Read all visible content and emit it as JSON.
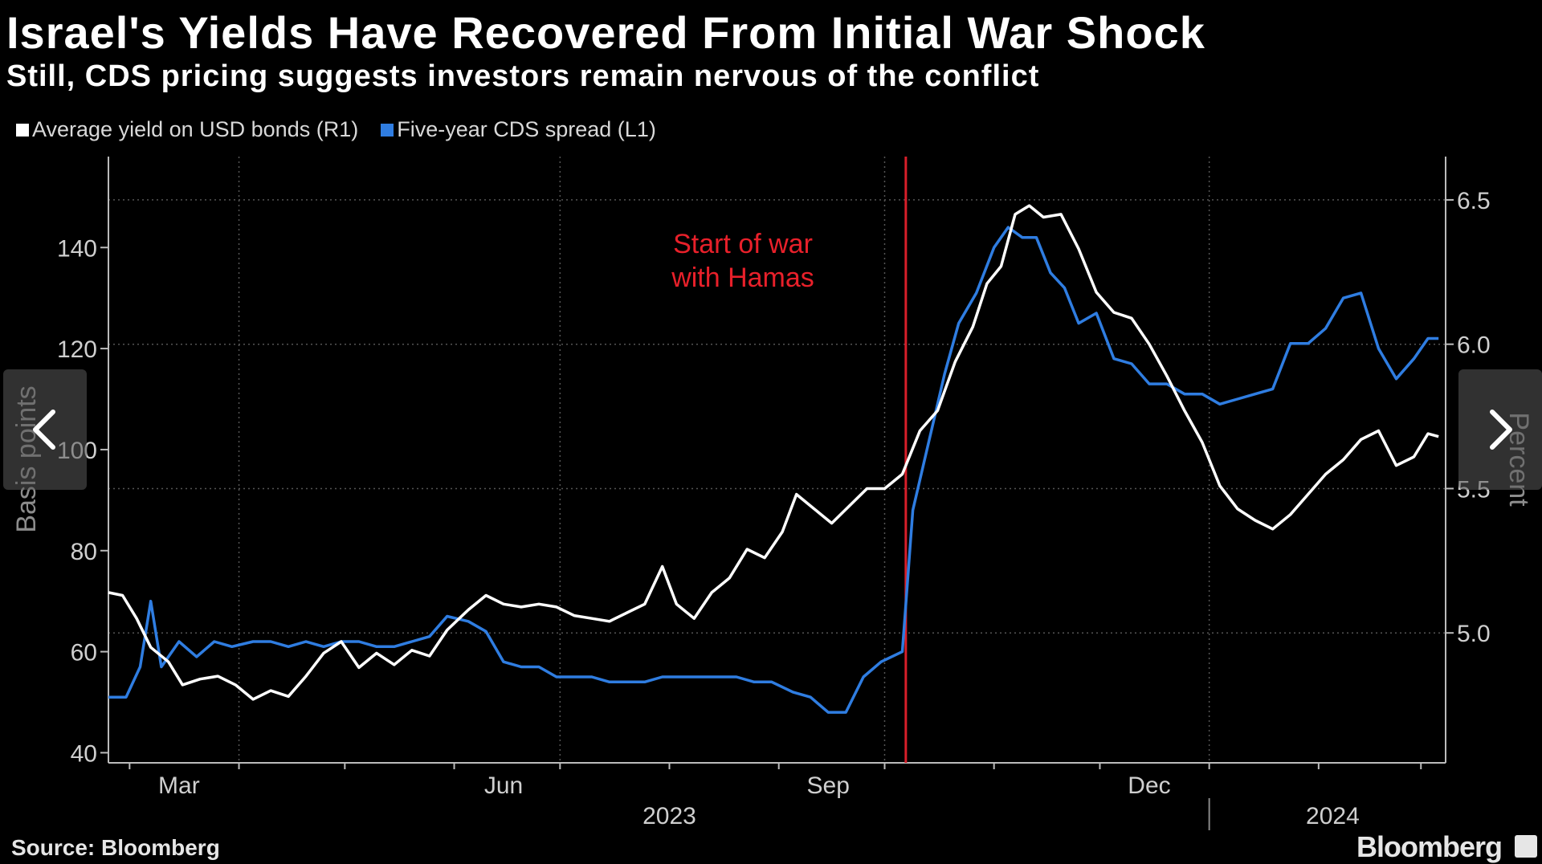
{
  "title": "Israel's Yields Have Recovered From Initial War Shock",
  "subtitle": "Still, CDS pricing suggests investors remain nervous of the conflict",
  "source": "Source: Bloomberg",
  "brand": "Bloomberg",
  "colors": {
    "yield": "#ffffff",
    "cds": "#2f7de1",
    "war_line": "#d81f2a",
    "grid": "#555555"
  },
  "icons": {
    "prev": "chevron-left-icon",
    "next": "chevron-right-icon",
    "brand": "bloomberg-logo-icon"
  },
  "chart_data": {
    "type": "line",
    "title": "Israel's Yields Have Recovered From Initial War Shock",
    "subtitle": "Still, CDS pricing suggests investors remain nervous of the conflict",
    "ylabel_left": "Basis points",
    "ylabel_right": "Percent",
    "ylim_left": [
      38,
      158
    ],
    "ylim_right": [
      4.55,
      6.65
    ],
    "yticks_left": [
      40,
      60,
      80,
      100,
      120,
      140
    ],
    "yticks_right": [
      "5.0",
      "5.5",
      "6.0",
      "6.5"
    ],
    "xlim": [
      "2023-02-23",
      "2024-03-08"
    ],
    "x_month_labels": [
      {
        "label": "Mar",
        "date": "2023-03-15"
      },
      {
        "label": "Jun",
        "date": "2023-06-15"
      },
      {
        "label": "Sep",
        "date": "2023-09-15"
      },
      {
        "label": "Dec",
        "date": "2023-12-15"
      }
    ],
    "x_year_labels": [
      {
        "label": "2023",
        "date": "2023-08-01"
      },
      {
        "label": "2024",
        "date": "2024-02-05"
      }
    ],
    "annotation": {
      "text": [
        "Start of war",
        "with Hamas"
      ],
      "date": "2023-10-07"
    },
    "legend": "top-left",
    "grid": true,
    "series": [
      {
        "name": "Average yield on USD bonds (R1)",
        "axis": "right",
        "points": [
          [
            "2023-02-23",
            5.14
          ],
          [
            "2023-02-27",
            5.13
          ],
          [
            "2023-03-03",
            5.05
          ],
          [
            "2023-03-07",
            4.95
          ],
          [
            "2023-03-12",
            4.9
          ],
          [
            "2023-03-16",
            4.82
          ],
          [
            "2023-03-21",
            4.84
          ],
          [
            "2023-03-26",
            4.85
          ],
          [
            "2023-03-31",
            4.82
          ],
          [
            "2023-04-05",
            4.77
          ],
          [
            "2023-04-10",
            4.8
          ],
          [
            "2023-04-15",
            4.78
          ],
          [
            "2023-04-20",
            4.85
          ],
          [
            "2023-04-25",
            4.93
          ],
          [
            "2023-04-30",
            4.97
          ],
          [
            "2023-05-05",
            4.88
          ],
          [
            "2023-05-10",
            4.93
          ],
          [
            "2023-05-15",
            4.89
          ],
          [
            "2023-05-20",
            4.94
          ],
          [
            "2023-05-25",
            4.92
          ],
          [
            "2023-05-30",
            5.01
          ],
          [
            "2023-06-05",
            5.08
          ],
          [
            "2023-06-10",
            5.13
          ],
          [
            "2023-06-15",
            5.1
          ],
          [
            "2023-06-20",
            5.09
          ],
          [
            "2023-06-25",
            5.1
          ],
          [
            "2023-06-30",
            5.09
          ],
          [
            "2023-07-05",
            5.06
          ],
          [
            "2023-07-10",
            5.05
          ],
          [
            "2023-07-15",
            5.04
          ],
          [
            "2023-07-20",
            5.07
          ],
          [
            "2023-07-25",
            5.1
          ],
          [
            "2023-07-30",
            5.23
          ],
          [
            "2023-08-03",
            5.1
          ],
          [
            "2023-08-08",
            5.05
          ],
          [
            "2023-08-13",
            5.14
          ],
          [
            "2023-08-18",
            5.19
          ],
          [
            "2023-08-23",
            5.29
          ],
          [
            "2023-08-28",
            5.26
          ],
          [
            "2023-09-02",
            5.35
          ],
          [
            "2023-09-06",
            5.48
          ],
          [
            "2023-09-11",
            5.43
          ],
          [
            "2023-09-16",
            5.38
          ],
          [
            "2023-09-21",
            5.44
          ],
          [
            "2023-09-26",
            5.5
          ],
          [
            "2023-10-01",
            5.5
          ],
          [
            "2023-10-06",
            5.55
          ],
          [
            "2023-10-11",
            5.7
          ],
          [
            "2023-10-16",
            5.77
          ],
          [
            "2023-10-21",
            5.94
          ],
          [
            "2023-10-26",
            6.06
          ],
          [
            "2023-10-30",
            6.21
          ],
          [
            "2023-11-03",
            6.27
          ],
          [
            "2023-11-07",
            6.45
          ],
          [
            "2023-11-11",
            6.48
          ],
          [
            "2023-11-15",
            6.44
          ],
          [
            "2023-11-20",
            6.45
          ],
          [
            "2023-11-25",
            6.33
          ],
          [
            "2023-11-30",
            6.18
          ],
          [
            "2023-12-05",
            6.11
          ],
          [
            "2023-12-10",
            6.09
          ],
          [
            "2023-12-15",
            6.0
          ],
          [
            "2023-12-20",
            5.89
          ],
          [
            "2023-12-25",
            5.77
          ],
          [
            "2023-12-30",
            5.66
          ],
          [
            "2024-01-04",
            5.51
          ],
          [
            "2024-01-09",
            5.43
          ],
          [
            "2024-01-14",
            5.39
          ],
          [
            "2024-01-19",
            5.36
          ],
          [
            "2024-01-24",
            5.41
          ],
          [
            "2024-01-29",
            5.48
          ],
          [
            "2024-02-03",
            5.55
          ],
          [
            "2024-02-08",
            5.6
          ],
          [
            "2024-02-13",
            5.67
          ],
          [
            "2024-02-18",
            5.7
          ],
          [
            "2024-02-23",
            5.58
          ],
          [
            "2024-02-28",
            5.61
          ],
          [
            "2024-03-03",
            5.69
          ],
          [
            "2024-03-06",
            5.68
          ]
        ]
      },
      {
        "name": "Five-year CDS spread (L1)",
        "axis": "left",
        "points": [
          [
            "2023-02-23",
            51
          ],
          [
            "2023-02-28",
            51
          ],
          [
            "2023-03-04",
            57
          ],
          [
            "2023-03-07",
            70
          ],
          [
            "2023-03-10",
            57
          ],
          [
            "2023-03-15",
            62
          ],
          [
            "2023-03-20",
            59
          ],
          [
            "2023-03-25",
            62
          ],
          [
            "2023-03-30",
            61
          ],
          [
            "2023-04-05",
            62
          ],
          [
            "2023-04-10",
            62
          ],
          [
            "2023-04-15",
            61
          ],
          [
            "2023-04-20",
            62
          ],
          [
            "2023-04-25",
            61
          ],
          [
            "2023-04-30",
            62
          ],
          [
            "2023-05-05",
            62
          ],
          [
            "2023-05-10",
            61
          ],
          [
            "2023-05-15",
            61
          ],
          [
            "2023-05-20",
            62
          ],
          [
            "2023-05-25",
            63
          ],
          [
            "2023-05-30",
            67
          ],
          [
            "2023-06-05",
            66
          ],
          [
            "2023-06-10",
            64
          ],
          [
            "2023-06-15",
            58
          ],
          [
            "2023-06-20",
            57
          ],
          [
            "2023-06-25",
            57
          ],
          [
            "2023-06-30",
            55
          ],
          [
            "2023-07-05",
            55
          ],
          [
            "2023-07-10",
            55
          ],
          [
            "2023-07-15",
            54
          ],
          [
            "2023-07-20",
            54
          ],
          [
            "2023-07-25",
            54
          ],
          [
            "2023-07-30",
            55
          ],
          [
            "2023-08-05",
            55
          ],
          [
            "2023-08-10",
            55
          ],
          [
            "2023-08-15",
            55
          ],
          [
            "2023-08-20",
            55
          ],
          [
            "2023-08-25",
            54
          ],
          [
            "2023-08-30",
            54
          ],
          [
            "2023-09-05",
            52
          ],
          [
            "2023-09-10",
            51
          ],
          [
            "2023-09-15",
            48
          ],
          [
            "2023-09-20",
            48
          ],
          [
            "2023-09-25",
            55
          ],
          [
            "2023-09-30",
            58
          ],
          [
            "2023-10-06",
            60
          ],
          [
            "2023-10-09",
            88
          ],
          [
            "2023-10-13",
            100
          ],
          [
            "2023-10-18",
            115
          ],
          [
            "2023-10-22",
            125
          ],
          [
            "2023-10-27",
            131
          ],
          [
            "2023-11-01",
            140
          ],
          [
            "2023-11-05",
            144
          ],
          [
            "2023-11-09",
            142
          ],
          [
            "2023-11-13",
            142
          ],
          [
            "2023-11-17",
            135
          ],
          [
            "2023-11-21",
            132
          ],
          [
            "2023-11-25",
            125
          ],
          [
            "2023-11-30",
            127
          ],
          [
            "2023-12-05",
            118
          ],
          [
            "2023-12-10",
            117
          ],
          [
            "2023-12-15",
            113
          ],
          [
            "2023-12-20",
            113
          ],
          [
            "2023-12-25",
            111
          ],
          [
            "2023-12-30",
            111
          ],
          [
            "2024-01-04",
            109
          ],
          [
            "2024-01-09",
            110
          ],
          [
            "2024-01-14",
            111
          ],
          [
            "2024-01-19",
            112
          ],
          [
            "2024-01-24",
            121
          ],
          [
            "2024-01-29",
            121
          ],
          [
            "2024-02-03",
            124
          ],
          [
            "2024-02-08",
            130
          ],
          [
            "2024-02-13",
            131
          ],
          [
            "2024-02-18",
            120
          ],
          [
            "2024-02-23",
            114
          ],
          [
            "2024-02-28",
            118
          ],
          [
            "2024-03-03",
            122
          ],
          [
            "2024-03-06",
            122
          ]
        ]
      }
    ]
  }
}
